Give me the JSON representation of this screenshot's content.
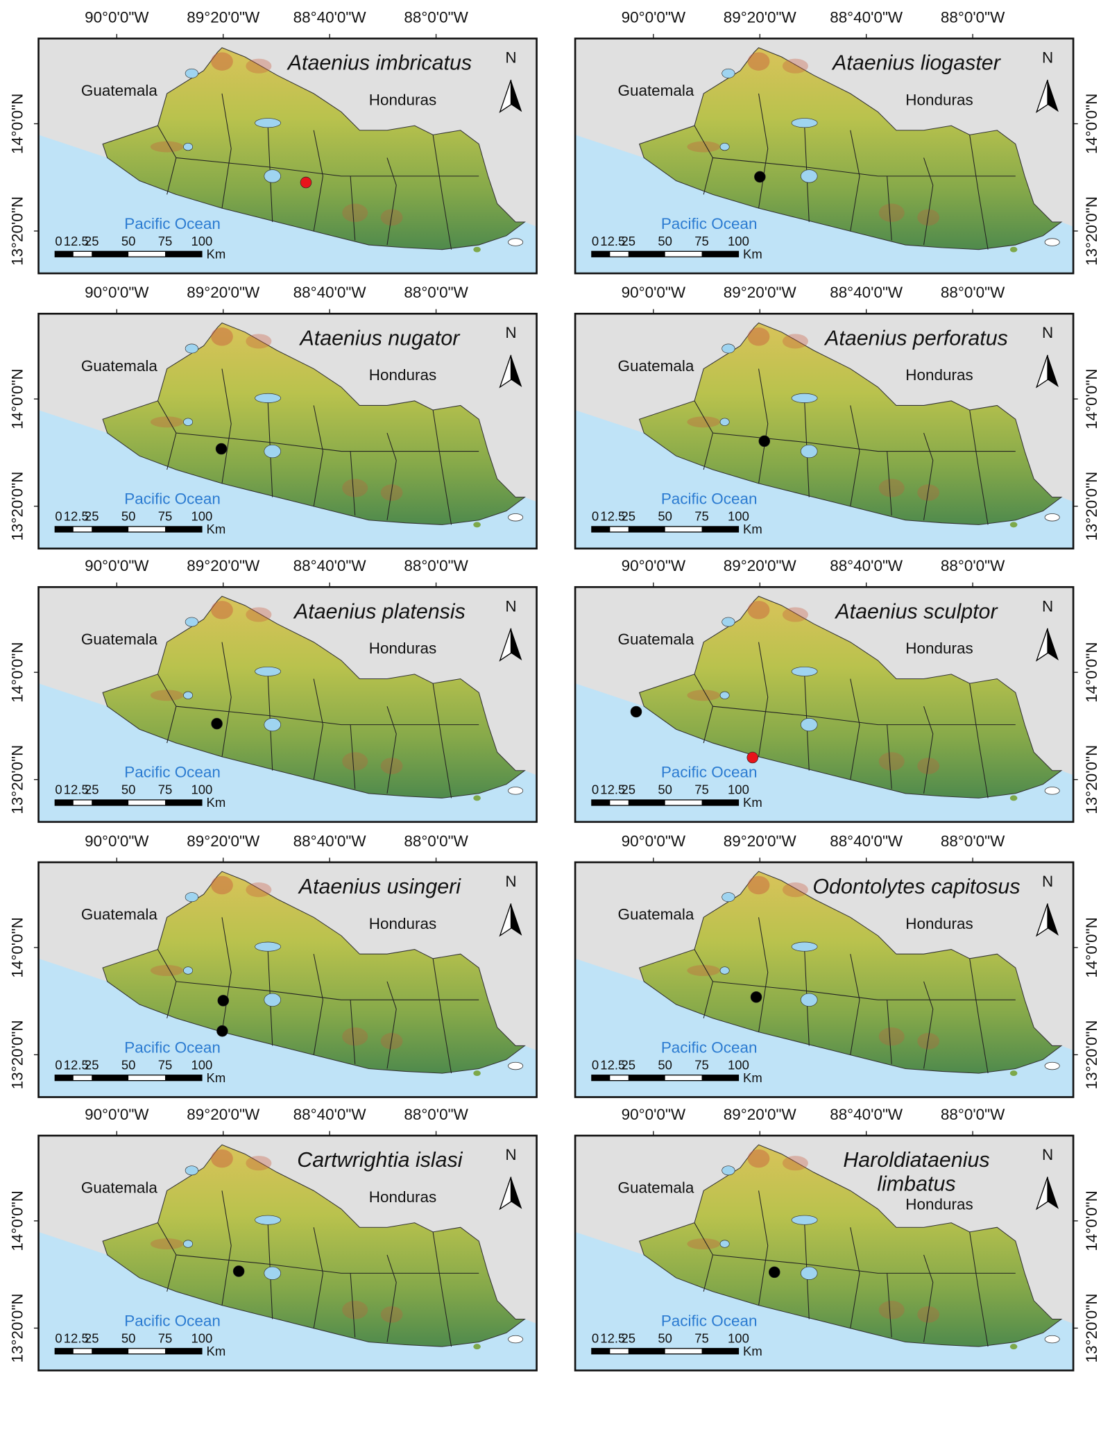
{
  "map": {
    "xlim": [
      -90.49,
      -87.37
    ],
    "ylim": [
      13.07,
      14.53
    ],
    "xticks": [
      {
        "value": -90,
        "label": "90°0'0\"W"
      },
      {
        "value": -89.3333,
        "label": "89°20'0\"W"
      },
      {
        "value": -88.6667,
        "label": "88°40'0\"W"
      },
      {
        "value": -88,
        "label": "88°0'0\"W"
      }
    ],
    "yticks": [
      {
        "value": 14,
        "label": "14°0'0\"N"
      },
      {
        "value": 13.3333,
        "label": "13°20'0\"N"
      }
    ],
    "labels": {
      "west": "Guatemala",
      "east": "Honduras",
      "ocean": "Pacific Ocean",
      "north": "N"
    },
    "scale_bar": {
      "ticks": [
        0,
        12.5,
        25,
        50,
        75,
        100
      ],
      "unit": "Km"
    }
  },
  "panels": [
    {
      "title": [
        "Ataenius imbricatus"
      ],
      "records": [
        {
          "lon": -88.815,
          "lat": 13.635,
          "color": "#e8141b"
        }
      ]
    },
    {
      "title": [
        "Ataenius liogaster"
      ],
      "records": [
        {
          "lon": -89.333,
          "lat": 13.67,
          "color": "#000000"
        }
      ]
    },
    {
      "title": [
        "Ataenius nugator"
      ],
      "records": [
        {
          "lon": -89.345,
          "lat": 13.69,
          "color": "#000000"
        }
      ]
    },
    {
      "title": [
        "Ataenius perforatus"
      ],
      "records": [
        {
          "lon": -89.305,
          "lat": 13.738,
          "color": "#000000"
        }
      ]
    },
    {
      "title": [
        "Ataenius platensis"
      ],
      "records": [
        {
          "lon": -89.373,
          "lat": 13.681,
          "color": "#000000"
        }
      ]
    },
    {
      "title": [
        "Ataenius sculptor"
      ],
      "records": [
        {
          "lon": -90.108,
          "lat": 13.755,
          "color": "#000000"
        },
        {
          "lon": -89.379,
          "lat": 13.47,
          "color": "#e8141b"
        }
      ]
    },
    {
      "title": [
        "Ataenius usingeri"
      ],
      "records": [
        {
          "lon": -89.333,
          "lat": 13.67,
          "color": "#000000"
        },
        {
          "lon": -89.339,
          "lat": 13.481,
          "color": "#000000"
        }
      ]
    },
    {
      "title": [
        "Odontolytes capitosus"
      ],
      "records": [
        {
          "lon": -89.356,
          "lat": 13.692,
          "color": "#000000"
        }
      ]
    },
    {
      "title": [
        "Cartwrightia islasi"
      ],
      "records": [
        {
          "lon": -89.236,
          "lat": 13.687,
          "color": "#000000"
        }
      ]
    },
    {
      "title": [
        "Haroldiataenius",
        "limbatus"
      ],
      "records": [
        {
          "lon": -89.242,
          "lat": 13.681,
          "color": "#000000"
        }
      ]
    }
  ]
}
